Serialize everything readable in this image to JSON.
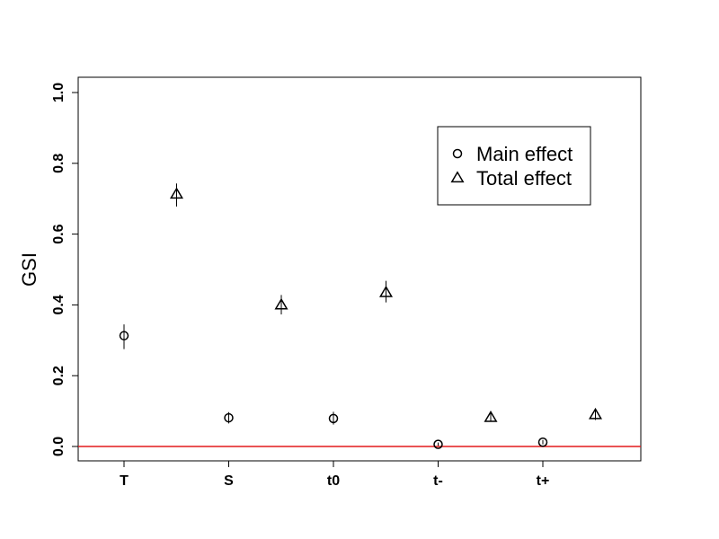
{
  "chart_data": {
    "type": "scatter",
    "title": "",
    "xlabel": "",
    "ylabel": "GSI",
    "ylim": [
      0,
      1.0
    ],
    "y_ticks": [
      "0.0",
      "0.2",
      "0.4",
      "0.6",
      "0.8",
      "1.0"
    ],
    "categories": [
      "T",
      "S",
      "t0",
      "t-",
      "t+"
    ],
    "grid": false,
    "legend_position": "top-right",
    "reference_line": {
      "y": 0,
      "color": "#e31a1c"
    },
    "series": [
      {
        "name": "Main effect",
        "marker": "circle",
        "values": [
          0.313,
          0.081,
          0.079,
          0.006,
          0.012
        ],
        "lower": [
          0.275,
          0.065,
          0.062,
          0.002,
          0.006
        ],
        "upper": [
          0.345,
          0.097,
          0.098,
          0.011,
          0.018
        ]
      },
      {
        "name": "Total effect",
        "marker": "triangle",
        "values": [
          0.713,
          0.4,
          0.435,
          0.082,
          0.09
        ],
        "lower": [
          0.678,
          0.373,
          0.407,
          0.07,
          0.075
        ],
        "upper": [
          0.743,
          0.428,
          0.468,
          0.095,
          0.104
        ]
      }
    ]
  }
}
